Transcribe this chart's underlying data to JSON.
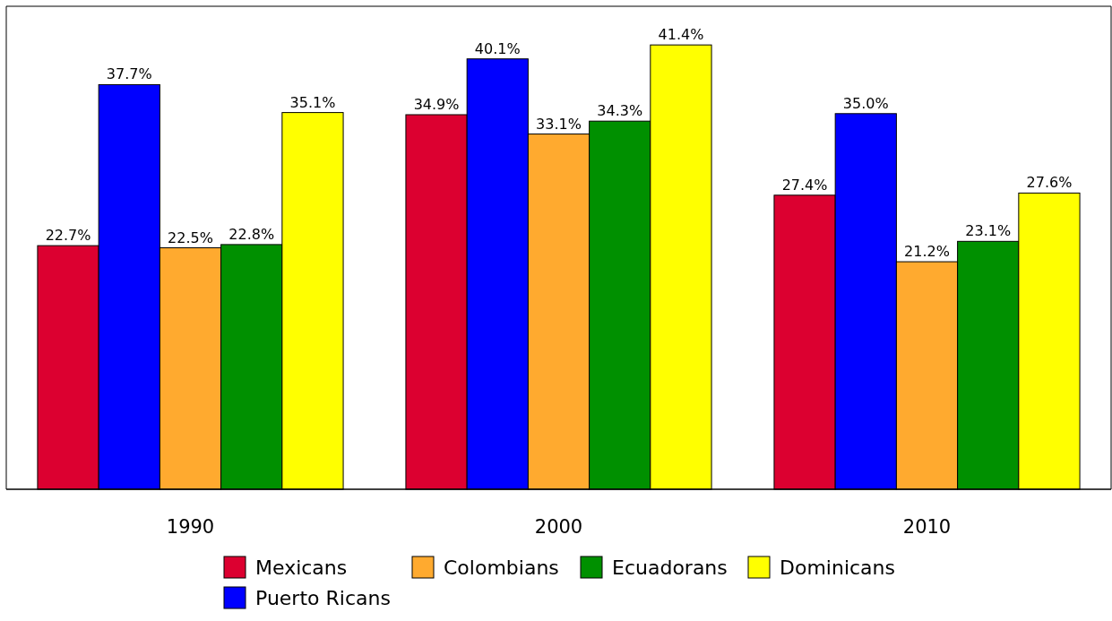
{
  "chart_data": {
    "type": "bar",
    "categories": [
      "1990",
      "2000",
      "2010"
    ],
    "legend": "bottom",
    "series": [
      {
        "name": "Mexicans",
        "color": "#dc0030",
        "values": [
          22.7,
          34.9,
          27.4
        ],
        "value_labels": [
          "22.7%",
          "34.9%",
          "27.4%"
        ]
      },
      {
        "name": "Puerto Ricans",
        "color": "#0000ff",
        "values": [
          37.7,
          40.1,
          35.0
        ],
        "value_labels": [
          "37.7%",
          "40.1%",
          "35.0%"
        ]
      },
      {
        "name": "Colombians",
        "color": "#ffaa2f",
        "values": [
          22.5,
          33.1,
          21.2
        ],
        "value_labels": [
          "22.5%",
          "33.1%",
          "21.2%"
        ]
      },
      {
        "name": "Ecuadorans",
        "color": "#009000",
        "values": [
          22.8,
          34.3,
          23.1
        ],
        "value_labels": [
          "22.8%",
          "34.3%",
          "23.1%"
        ]
      },
      {
        "name": "Dominicans",
        "color": "#ffff00",
        "values": [
          35.1,
          41.4,
          27.6
        ],
        "value_labels": [
          "35.1%",
          "41.4%",
          "27.6%"
        ]
      }
    ]
  }
}
